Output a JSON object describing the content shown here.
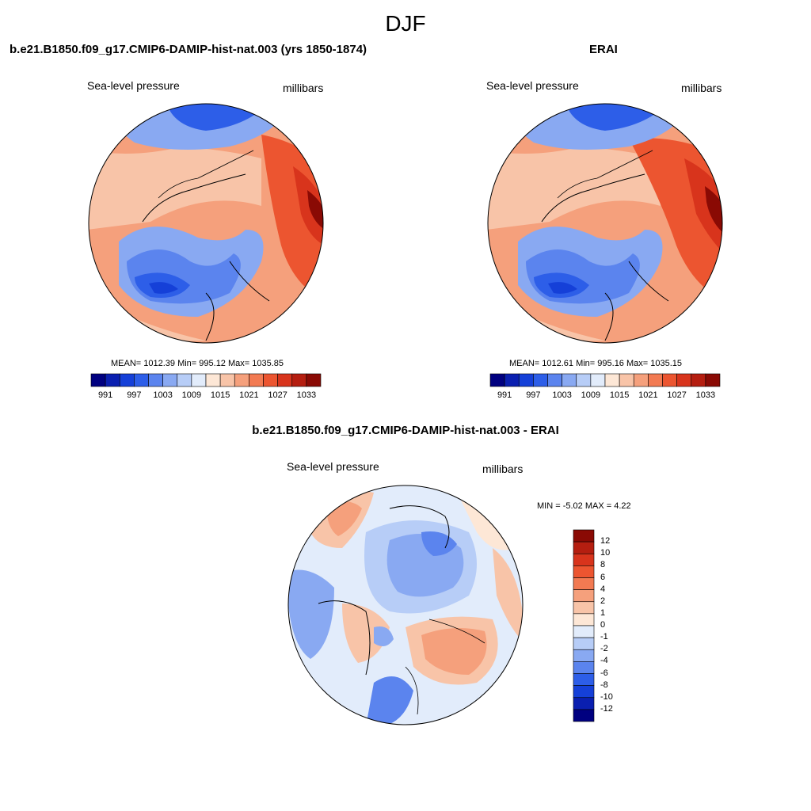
{
  "figure": {
    "season": "DJF"
  },
  "panels": [
    {
      "id": "model",
      "title": "b.e21.B1850.f09_g17.CMIP6-DAMIP-hist-nat.003 (yrs 1850-1874)",
      "variable": "Sea-level pressure",
      "units": "millibars",
      "stats": "MEAN= 1012.39  Min= 995.12  Max= 1035.85"
    },
    {
      "id": "obs",
      "title": "ERAI",
      "variable": "Sea-level pressure",
      "units": "millibars",
      "stats": "MEAN= 1012.61  Min= 995.16  Max= 1035.15"
    },
    {
      "id": "diff",
      "title": "b.e21.B1850.f09_g17.CMIP6-DAMIP-hist-nat.003 - ERAI",
      "variable": "Sea-level pressure",
      "units": "millibars",
      "stats": "MIN =  -5.02 MAX =   4.22"
    }
  ],
  "colorbar_abs": {
    "colors": [
      "#000080",
      "#0a1fb0",
      "#1540d8",
      "#2d5ee8",
      "#5b84ee",
      "#89a9f2",
      "#b7cdf7",
      "#e2ecfb",
      "#fde7d6",
      "#f8c4a8",
      "#f5a07c",
      "#f27a52",
      "#ec5530",
      "#d8341c",
      "#b51e10",
      "#8a0a04"
    ],
    "labels": [
      "991",
      "997",
      "1003",
      "1009",
      "1015",
      "1021",
      "1027",
      "1033"
    ]
  },
  "colorbar_diff": {
    "colors": [
      "#8a0a04",
      "#b51e10",
      "#d8341c",
      "#ec5530",
      "#f27a52",
      "#f5a07c",
      "#f8c4a8",
      "#fde7d6",
      "#e2ecfb",
      "#b7cdf7",
      "#89a9f2",
      "#5b84ee",
      "#2d5ee8",
      "#1540d8",
      "#0a1fb0",
      "#000080"
    ],
    "labels": [
      "12",
      "10",
      "8",
      "6",
      "4",
      "2",
      "1",
      "0",
      "-1",
      "-2",
      "-4",
      "-6",
      "-8",
      "-10",
      "-12"
    ]
  },
  "colors": {
    "high": "#ec5530",
    "low": "#2d5ee8",
    "neutral": "#fde7d6",
    "coast": "#000000"
  }
}
